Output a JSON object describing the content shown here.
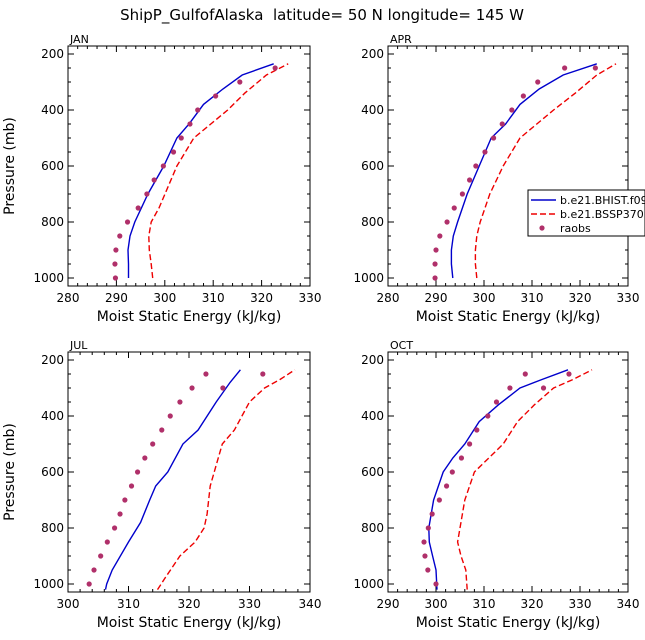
{
  "title": "ShipP_GulfofAlaska  latitude= 50 N longitude= 145 W",
  "colors": {
    "hist": "#0000cc",
    "ssp": "#ee0000",
    "raobs": "#b0306a"
  },
  "legend": {
    "hist": "b.e21.BHIST.f09_",
    "ssp": "b.e21.BSSP370.f",
    "raobs": "raobs"
  },
  "chart_data": [
    {
      "type": "line",
      "panel": "JAN",
      "xlabel": "Moist Static Energy (kJ/kg)",
      "ylabel": "Pressure (mb)",
      "xlim": [
        280,
        330
      ],
      "xticks": [
        280,
        290,
        300,
        310,
        320,
        330
      ],
      "ylim": [
        1000,
        200
      ],
      "yticks": [
        200,
        400,
        600,
        800,
        1000
      ],
      "grid": false,
      "legend": "none",
      "series": [
        {
          "key": "hist",
          "style": "solid",
          "x": [
            292.5,
            292.5,
            292.4,
            292.8,
            293.8,
            296.5,
            299.8,
            302.5,
            305,
            308,
            312,
            316,
            322.5
          ],
          "y": [
            1000,
            950,
            900,
            850,
            800,
            700,
            600,
            500,
            450,
            380,
            325,
            275,
            235
          ]
        },
        {
          "key": "ssp",
          "style": "dashed",
          "x": [
            297.5,
            297.2,
            296.8,
            296.7,
            297.2,
            298.8,
            302.5,
            306,
            309.5,
            313,
            316.5,
            321,
            325.5
          ],
          "y": [
            1000,
            950,
            900,
            850,
            800,
            750,
            600,
            500,
            450,
            400,
            340,
            275,
            235
          ]
        },
        {
          "key": "raobs",
          "style": "points",
          "x": [
            289.8,
            289.7,
            289.9,
            290.7,
            292.3,
            294.5,
            296.3,
            297.8,
            299.7,
            301.8,
            303.4,
            305.2,
            306.8,
            310.5,
            315.5,
            322.8
          ],
          "y": [
            1000,
            950,
            900,
            850,
            800,
            750,
            700,
            650,
            600,
            550,
            500,
            450,
            400,
            350,
            300,
            250
          ]
        }
      ]
    },
    {
      "type": "line",
      "panel": "APR",
      "xlabel": "Moist Static Energy (kJ/kg)",
      "ylabel": "",
      "xlim": [
        280,
        330
      ],
      "xticks": [
        280,
        290,
        300,
        310,
        320,
        330
      ],
      "ylim": [
        1000,
        200
      ],
      "yticks": [
        200,
        400,
        600,
        800,
        1000
      ],
      "grid": false,
      "legend": "right",
      "series": [
        {
          "key": "hist",
          "style": "solid",
          "x": [
            293.5,
            293.2,
            293.2,
            293.6,
            294.5,
            296.5,
            299,
            301.5,
            304.5,
            307.5,
            311.5,
            316.5,
            323.5
          ],
          "y": [
            1000,
            950,
            900,
            850,
            800,
            700,
            600,
            500,
            450,
            380,
            325,
            275,
            235
          ]
        },
        {
          "key": "ssp",
          "style": "dashed",
          "x": [
            298.5,
            298.2,
            298.2,
            298.5,
            299.2,
            301.2,
            304,
            307.5,
            311,
            314.5,
            319,
            323.5,
            327.5
          ],
          "y": [
            1000,
            950,
            900,
            850,
            800,
            700,
            600,
            500,
            450,
            400,
            340,
            275,
            235
          ]
        },
        {
          "key": "raobs",
          "style": "points",
          "x": [
            289.8,
            289.8,
            290,
            290.8,
            292.3,
            293.8,
            295.5,
            297,
            298.3,
            300.2,
            302,
            303.8,
            305.8,
            308.2,
            311.2,
            316.8,
            323.2
          ],
          "y": [
            1000,
            950,
            900,
            850,
            800,
            750,
            700,
            650,
            600,
            550,
            500,
            450,
            400,
            350,
            300,
            250,
            250
          ]
        }
      ]
    },
    {
      "type": "line",
      "panel": "JUL",
      "xlabel": "Moist Static Energy (kJ/kg)",
      "ylabel": "Pressure (mb)",
      "xlim": [
        300,
        340
      ],
      "xticks": [
        300,
        310,
        320,
        330,
        340
      ],
      "ylim": [
        1000,
        200
      ],
      "yticks": [
        200,
        400,
        600,
        800,
        1000
      ],
      "grid": false,
      "legend": "none",
      "series": [
        {
          "key": "hist",
          "style": "solid",
          "x": [
            306.2,
            306.4,
            307.3,
            310,
            312,
            313.5,
            314.5,
            316.5,
            319,
            321.5,
            324.5,
            326.8,
            328.5
          ],
          "y": [
            1020,
            1000,
            950,
            850,
            780,
            700,
            650,
            600,
            500,
            450,
            350,
            280,
            235
          ]
        },
        {
          "key": "ssp",
          "style": "dashed",
          "x": [
            314.8,
            316,
            318.5,
            321,
            322.5,
            323,
            323.5,
            325.5,
            327.5,
            330,
            332.5,
            335,
            337.5
          ],
          "y": [
            1020,
            980,
            900,
            850,
            800,
            750,
            650,
            500,
            450,
            350,
            300,
            270,
            235
          ]
        },
        {
          "key": "raobs",
          "style": "points",
          "x": [
            303.5,
            304.3,
            305.4,
            306.5,
            307.7,
            308.6,
            309.4,
            310.5,
            311.5,
            312.7,
            314,
            315.5,
            316.9,
            318.5,
            320.5,
            322.8,
            325.6,
            332.2
          ],
          "y": [
            1000,
            950,
            900,
            850,
            800,
            750,
            700,
            650,
            600,
            550,
            500,
            450,
            400,
            350,
            300,
            250,
            300,
            250
          ]
        }
      ]
    },
    {
      "type": "line",
      "panel": "OCT",
      "xlabel": "Moist Static Energy (kJ/kg)",
      "ylabel": "",
      "xlim": [
        290,
        340
      ],
      "xticks": [
        290,
        300,
        310,
        320,
        330,
        340
      ],
      "ylim": [
        1000,
        200
      ],
      "yticks": [
        200,
        400,
        600,
        800,
        1000
      ],
      "grid": false,
      "legend": "none",
      "series": [
        {
          "key": "hist",
          "style": "solid",
          "x": [
            300.2,
            300,
            299.3,
            298.6,
            298.5,
            299.5,
            301.5,
            303.5,
            306,
            309,
            313,
            317.5,
            322,
            327.5
          ],
          "y": [
            1020,
            950,
            900,
            850,
            800,
            700,
            600,
            550,
            500,
            420,
            360,
            300,
            270,
            235
          ]
        },
        {
          "key": "ssp",
          "style": "dashed",
          "x": [
            306.5,
            306.2,
            305.2,
            304.5,
            305,
            306,
            308,
            311,
            314,
            317,
            320.5,
            324.5,
            328.5,
            332.5
          ],
          "y": [
            1020,
            950,
            900,
            850,
            800,
            700,
            600,
            550,
            500,
            420,
            360,
            300,
            270,
            235
          ]
        },
        {
          "key": "raobs",
          "style": "points",
          "x": [
            300,
            298.3,
            297.7,
            297.5,
            298.4,
            299.2,
            300.7,
            302.2,
            303.4,
            305.3,
            307,
            308.5,
            310.8,
            312.6,
            315.4,
            318.6,
            322.4,
            327.7
          ],
          "y": [
            1000,
            950,
            900,
            850,
            800,
            750,
            700,
            650,
            600,
            550,
            500,
            450,
            400,
            350,
            300,
            250,
            300,
            250
          ]
        }
      ]
    }
  ]
}
